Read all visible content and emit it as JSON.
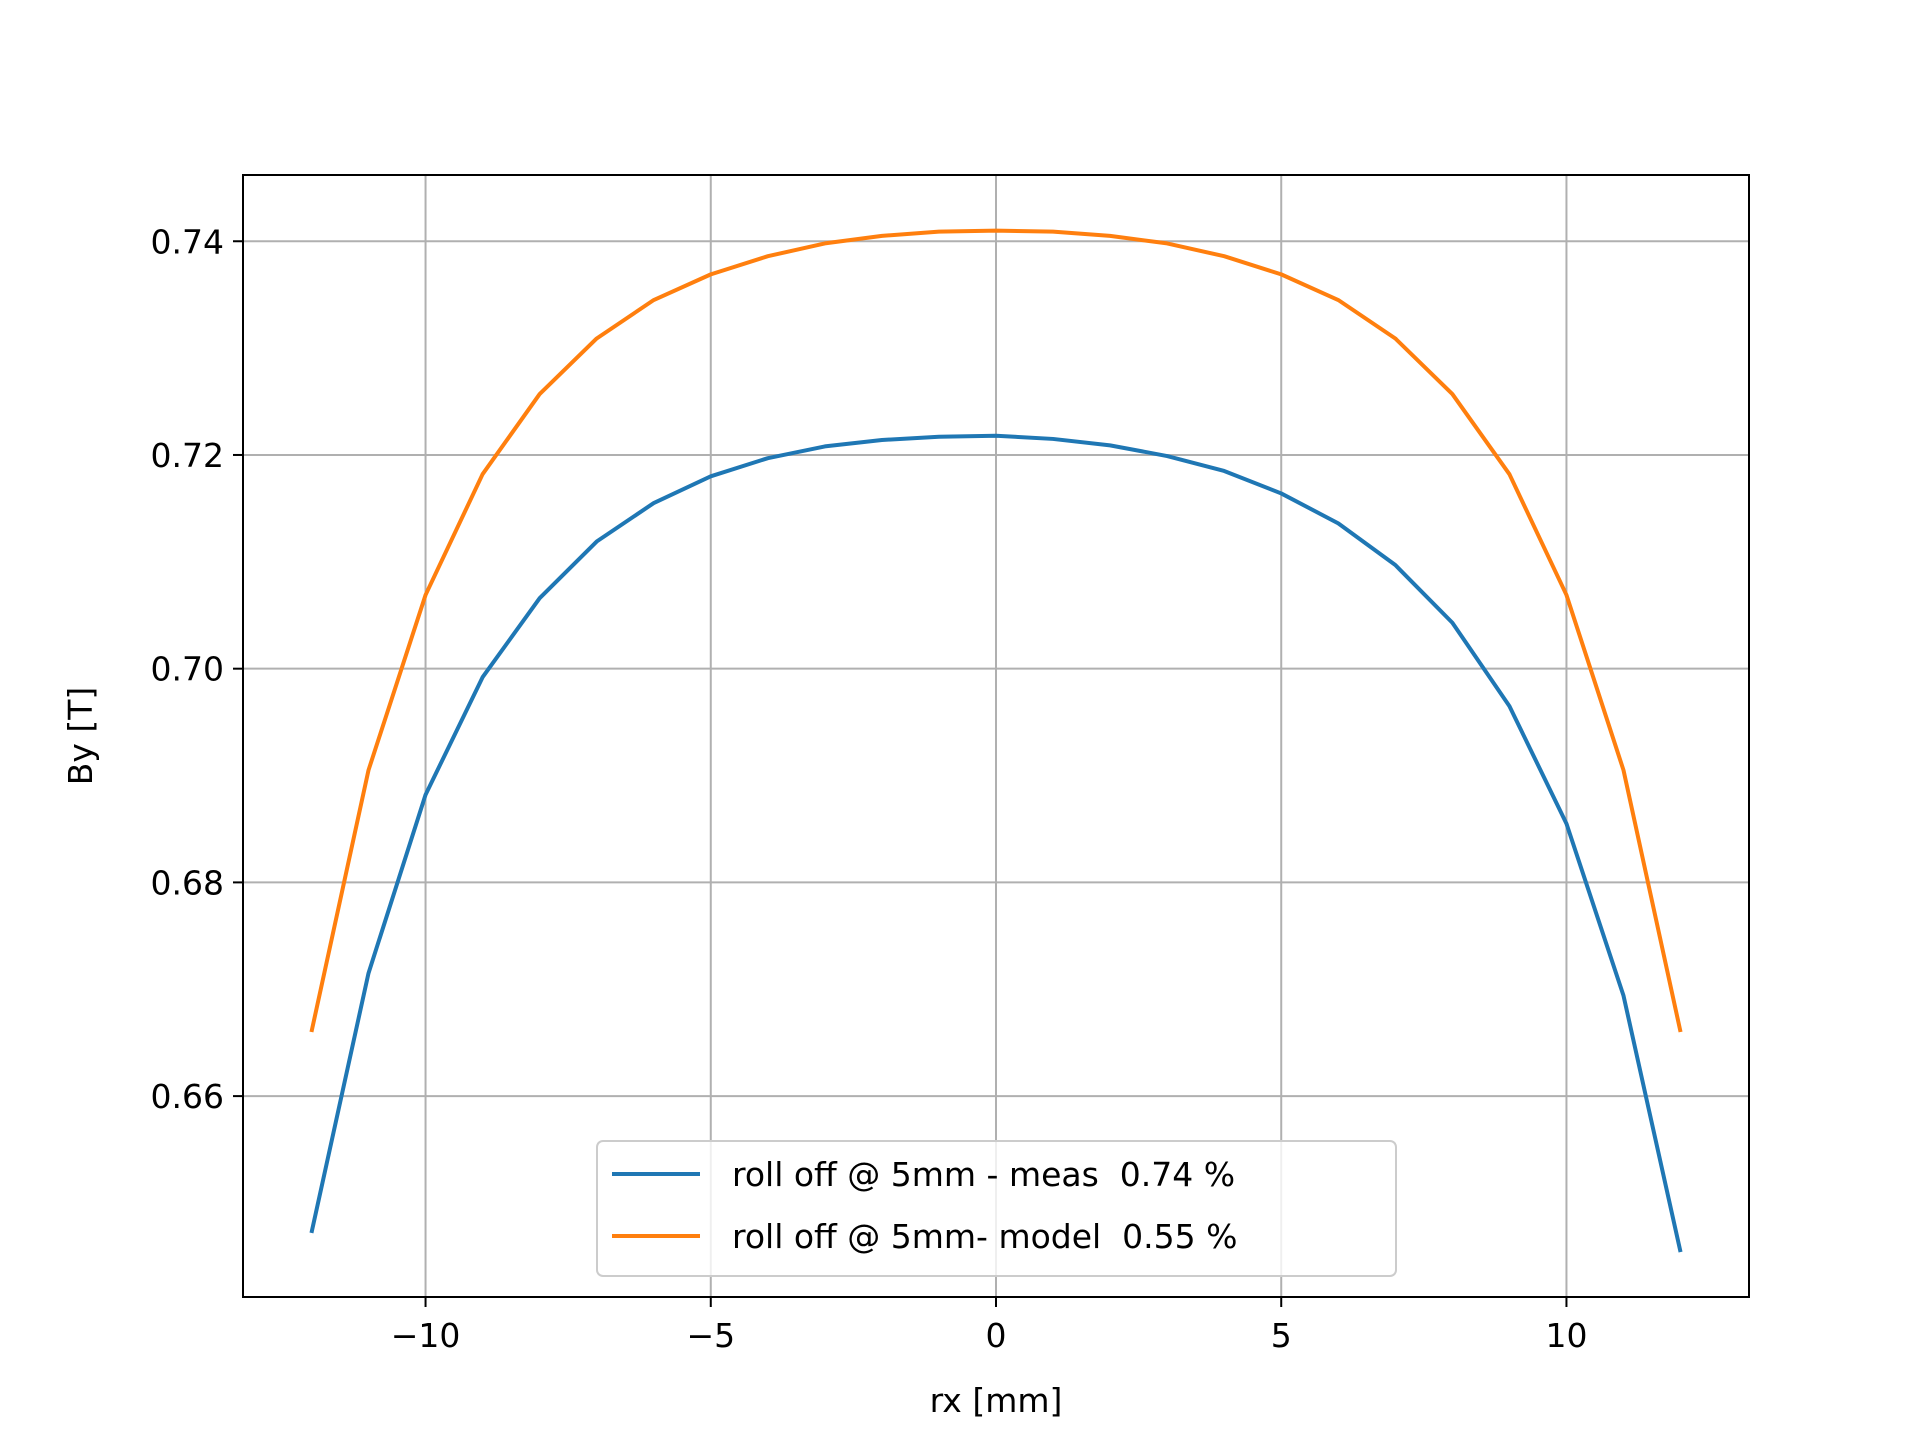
{
  "chart_data": {
    "type": "line",
    "xlabel": "rx [mm]",
    "ylabel": "By [T]",
    "xlim": [
      -13.2,
      13.2
    ],
    "ylim": [
      0.6412,
      0.7462
    ],
    "xticks": [
      -10,
      -5,
      0,
      5,
      10
    ],
    "xtick_labels": [
      "−10",
      "−5",
      "0",
      "5",
      "10"
    ],
    "yticks": [
      0.66,
      0.68,
      0.7,
      0.72,
      0.74
    ],
    "ytick_labels": [
      "0.66",
      "0.68",
      "0.70",
      "0.72",
      "0.74"
    ],
    "grid": true,
    "legend_position": "lower-center",
    "x": [
      -12,
      -11,
      -10,
      -9,
      -8,
      -7,
      -6,
      -5,
      -4,
      -3,
      -2,
      -1,
      0,
      1,
      2,
      3,
      4,
      5,
      6,
      7,
      8,
      9,
      10,
      11,
      12
    ],
    "series": [
      {
        "name": "roll off @ 5mm - meas  0.74 %",
        "color": "#1f77b4",
        "values": [
          0.6472,
          0.6715,
          0.6882,
          0.6992,
          0.7066,
          0.7119,
          0.7155,
          0.718,
          0.7197,
          0.7208,
          0.7214,
          0.7217,
          0.7218,
          0.7215,
          0.7209,
          0.7199,
          0.7185,
          0.7164,
          0.7136,
          0.7097,
          0.7043,
          0.6965,
          0.6855,
          0.6694,
          0.6454
        ]
      },
      {
        "name": "roll off @ 5mm- model  0.55 %",
        "color": "#ff7f0e",
        "values": [
          0.666,
          0.6905,
          0.7069,
          0.7182,
          0.7257,
          0.7309,
          0.7345,
          0.7369,
          0.7386,
          0.7398,
          0.7405,
          0.7409,
          0.741,
          0.7409,
          0.7405,
          0.7398,
          0.7386,
          0.7369,
          0.7345,
          0.7309,
          0.7257,
          0.7182,
          0.7069,
          0.6905,
          0.666
        ]
      }
    ]
  }
}
